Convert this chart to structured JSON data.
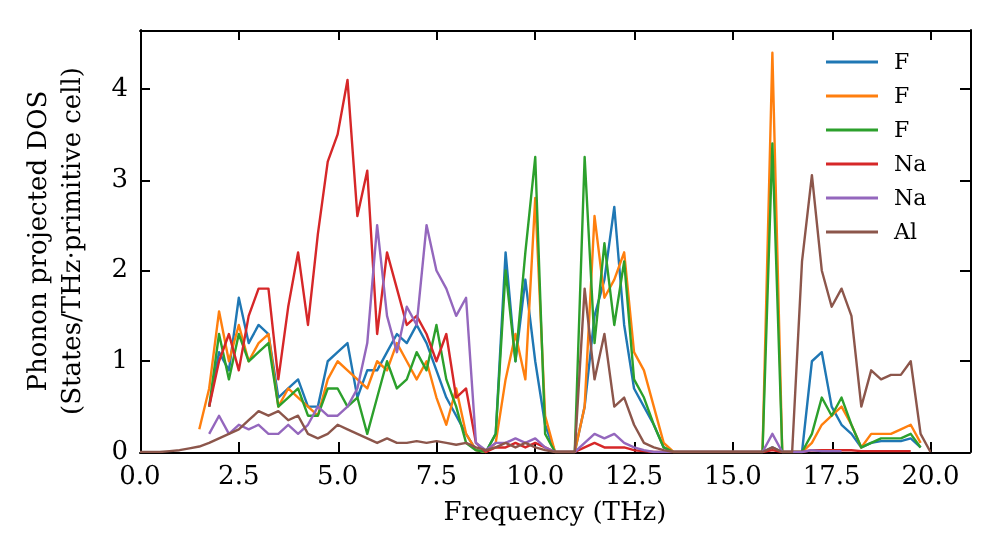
{
  "chart_data": {
    "type": "line",
    "xlabel": "Frequency (THz)",
    "ylabel": "Phonon projected DOS\n(States/THz·primitive cell)",
    "x": [
      0,
      0.25,
      0.5,
      0.75,
      1,
      1.25,
      1.5,
      1.75,
      2,
      2.25,
      2.5,
      2.75,
      3,
      3.25,
      3.5,
      3.75,
      4,
      4.25,
      4.5,
      4.75,
      5,
      5.25,
      5.5,
      5.75,
      6,
      6.25,
      6.5,
      6.75,
      7,
      7.25,
      7.5,
      7.75,
      8,
      8.25,
      8.5,
      8.75,
      9,
      9.25,
      9.5,
      9.75,
      10,
      10.25,
      10.5,
      10.75,
      11,
      11.25,
      11.5,
      11.75,
      12,
      12.25,
      12.5,
      12.75,
      13,
      13.25,
      13.5,
      13.75,
      14,
      14.25,
      14.5,
      14.75,
      15,
      15.25,
      15.5,
      15.75,
      16,
      16.25,
      16.5,
      16.75,
      17,
      17.25,
      17.5,
      17.75,
      18,
      18.25,
      18.5,
      18.75,
      19,
      19.25,
      19.5,
      19.75,
      20
    ],
    "series": [
      {
        "name": "F",
        "color": "#1f77b4",
        "values": [
          null,
          null,
          null,
          null,
          null,
          null,
          null,
          0.5,
          1.1,
          0.9,
          1.7,
          1.2,
          1.4,
          1.3,
          0.6,
          0.7,
          0.8,
          0.5,
          0.5,
          1.0,
          1.1,
          1.2,
          0.6,
          0.9,
          0.9,
          1.1,
          1.3,
          1.2,
          1.4,
          1.2,
          0.9,
          0.6,
          0.4,
          0.2,
          0.02,
          0,
          0.2,
          2.2,
          1.0,
          1.9,
          1.0,
          0.3,
          0,
          0,
          0,
          0.5,
          1.5,
          1.9,
          2.7,
          1.4,
          0.7,
          0.5,
          0.3,
          0.05,
          0,
          0,
          0,
          0,
          0,
          0,
          0,
          0,
          0,
          0,
          0.05,
          0,
          0,
          0,
          1.0,
          1.1,
          0.5,
          0.3,
          0.2,
          0.05,
          0.1,
          0.12,
          0.12,
          0.12,
          0.15,
          0.05,
          null
        ]
      },
      {
        "name": "F",
        "color": "#ff7f0e",
        "values": [
          null,
          null,
          null,
          null,
          null,
          null,
          0.25,
          0.7,
          1.55,
          1.0,
          1.4,
          1.0,
          1.2,
          1.3,
          0.5,
          0.7,
          0.6,
          0.5,
          0.4,
          0.8,
          1.0,
          0.9,
          0.8,
          0.7,
          1.0,
          0.9,
          1.2,
          1.0,
          0.8,
          1.0,
          0.6,
          0.3,
          0.7,
          0.2,
          0.02,
          0,
          0.1,
          0.8,
          1.3,
          0.8,
          2.8,
          0.4,
          0,
          0,
          0,
          0.5,
          2.6,
          1.7,
          1.9,
          2.2,
          1.1,
          0.9,
          0.5,
          0.1,
          0,
          0,
          0,
          0,
          0,
          0,
          0,
          0,
          0,
          0,
          4.4,
          0,
          0,
          0,
          0.1,
          0.3,
          0.4,
          0.5,
          0.3,
          0.05,
          0.2,
          0.2,
          0.2,
          0.25,
          0.3,
          0.1,
          null
        ]
      },
      {
        "name": "F",
        "color": "#2ca02c",
        "values": [
          null,
          null,
          null,
          null,
          null,
          null,
          null,
          0.5,
          1.3,
          0.8,
          1.3,
          1.0,
          1.1,
          1.2,
          0.5,
          0.6,
          0.7,
          0.4,
          0.4,
          0.7,
          0.7,
          0.5,
          0.6,
          0.2,
          0.6,
          1.0,
          0.7,
          0.8,
          1.1,
          0.9,
          1.4,
          0.8,
          0.5,
          0.1,
          0.02,
          0,
          0.2,
          2.0,
          1.0,
          2.2,
          3.25,
          0.2,
          0,
          0,
          0,
          3.25,
          1.2,
          2.3,
          1.4,
          2.1,
          0.8,
          0.6,
          0.3,
          0.05,
          0,
          0,
          0,
          0,
          0,
          0,
          0,
          0,
          0,
          0,
          3.4,
          0,
          0,
          0,
          0.2,
          0.6,
          0.4,
          0.6,
          0.3,
          0.05,
          0.1,
          0.15,
          0.15,
          0.15,
          0.2,
          0.05,
          null
        ]
      },
      {
        "name": "Na",
        "color": "#d62728",
        "values": [
          null,
          null,
          null,
          null,
          null,
          null,
          null,
          0.5,
          1.0,
          1.3,
          0.9,
          1.5,
          1.8,
          1.8,
          0.8,
          1.6,
          2.2,
          1.4,
          2.4,
          3.2,
          3.5,
          4.1,
          2.6,
          3.1,
          1.3,
          2.2,
          1.8,
          1.4,
          1.5,
          1.3,
          1.0,
          1.3,
          0.6,
          0.7,
          0.1,
          0,
          0.05,
          0.05,
          0.1,
          0.05,
          0.1,
          0.05,
          0,
          0,
          0,
          0.05,
          0.1,
          0.05,
          0.05,
          0.05,
          0.02,
          0.01,
          0,
          0,
          0,
          0,
          0,
          0,
          0,
          0,
          0,
          0,
          0,
          0,
          0.02,
          0,
          0,
          0,
          0.02,
          0.02,
          0.02,
          0.02,
          0.02,
          0.01,
          0.01,
          0.01,
          0.01,
          0.01,
          0.01,
          null,
          null
        ]
      },
      {
        "name": "Na",
        "color": "#9467bd",
        "values": [
          null,
          null,
          null,
          null,
          null,
          null,
          null,
          0.2,
          0.4,
          0.2,
          0.3,
          0.25,
          0.3,
          0.2,
          0.2,
          0.3,
          0.2,
          0.3,
          0.5,
          0.4,
          0.4,
          0.5,
          0.7,
          1.2,
          2.5,
          1.5,
          1.1,
          1.6,
          1.4,
          2.5,
          2.0,
          1.8,
          1.5,
          1.7,
          0.1,
          0.02,
          0.1,
          0.1,
          0.15,
          0.1,
          0.15,
          0.05,
          0,
          0,
          0,
          0.1,
          0.2,
          0.15,
          0.2,
          0.1,
          0.05,
          0.02,
          0,
          0,
          0,
          0,
          0,
          0,
          0,
          0,
          0,
          0,
          0,
          0,
          0.2,
          0,
          0,
          0,
          0.02,
          0.01,
          0.01,
          0.01,
          null,
          null,
          null,
          null,
          null,
          null,
          null,
          null,
          null
        ]
      },
      {
        "name": "Al",
        "color": "#8c564b",
        "values": [
          0,
          0,
          0,
          0.01,
          0.02,
          0.04,
          0.06,
          0.1,
          0.15,
          0.2,
          0.25,
          0.35,
          0.45,
          0.4,
          0.45,
          0.35,
          0.4,
          0.2,
          0.15,
          0.2,
          0.3,
          0.25,
          0.2,
          0.15,
          0.1,
          0.15,
          0.1,
          0.1,
          0.12,
          0.1,
          0.12,
          0.1,
          0.08,
          0.1,
          0.05,
          0.02,
          0.05,
          0.1,
          0.05,
          0.1,
          0.05,
          0.02,
          0,
          0,
          0,
          1.8,
          0.8,
          1.3,
          0.5,
          0.6,
          0.3,
          0.1,
          0.05,
          0.02,
          0,
          0,
          0,
          0,
          0,
          0,
          0,
          0,
          0,
          0,
          0.05,
          0,
          0,
          2.1,
          3.05,
          2.0,
          1.6,
          1.8,
          1.5,
          0.5,
          0.9,
          0.8,
          0.85,
          0.85,
          1.0,
          0.2,
          0
        ]
      }
    ],
    "xlim": [
      0,
      21
    ],
    "ylim": [
      0,
      4.65
    ],
    "xticks": [
      {
        "value": 0,
        "label": "0.0"
      },
      {
        "value": 2.5,
        "label": "2.5"
      },
      {
        "value": 5,
        "label": "5.0"
      },
      {
        "value": 7.5,
        "label": "7.5"
      },
      {
        "value": 10,
        "label": "10.0"
      },
      {
        "value": 12.5,
        "label": "12.5"
      },
      {
        "value": 15,
        "label": "15.0"
      },
      {
        "value": 17.5,
        "label": "17.5"
      },
      {
        "value": 20,
        "label": "20.0"
      }
    ],
    "yticks": [
      0,
      1,
      2,
      3,
      4
    ],
    "legend": "top right",
    "grid": false,
    "marker": "none",
    "line_style": "solid"
  }
}
